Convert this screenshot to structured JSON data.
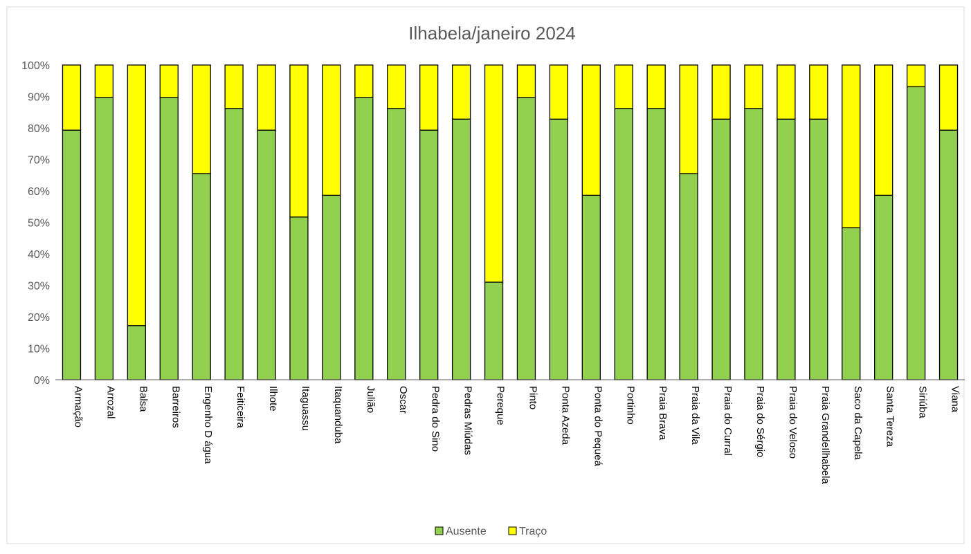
{
  "chart_data": {
    "type": "bar",
    "stacked": true,
    "title": "Ilhabela/janeiro 2024",
    "xlabel": "",
    "ylabel": "",
    "ylim": [
      0,
      100
    ],
    "yticks": [
      "0%",
      "10%",
      "20%",
      "30%",
      "40%",
      "50%",
      "60%",
      "70%",
      "80%",
      "90%",
      "100%"
    ],
    "grid": false,
    "legend_position": "bottom",
    "categories": [
      "Armação",
      "Arrozal",
      "Balsa",
      "Barreiros",
      "Engenho D água",
      "Feiticeira",
      "Ilhote",
      "Itaguassu",
      "Itaquanduba",
      "Julião",
      "Oscar",
      "Pedra do Sino",
      "Pedras Miúdas",
      "Pereque",
      "Pinto",
      "Ponta Azeda",
      "Ponta do Pequeá",
      "Portinho",
      "Praia Brava",
      "Praia da Vila",
      "Praia do Curral",
      "Praia do Sérgio",
      "Praia do Veloso",
      "Praia GrandeIlhabela",
      "Saco da Capela",
      "Santa Tereza",
      "Siriúba",
      "Viana"
    ],
    "series": [
      {
        "name": "Ausente",
        "color": "#92D050",
        "values": [
          79.3,
          89.7,
          17.2,
          89.7,
          65.5,
          86.2,
          79.3,
          51.7,
          58.6,
          89.7,
          86.2,
          79.3,
          82.8,
          31.0,
          89.7,
          82.8,
          58.6,
          86.2,
          86.2,
          65.5,
          82.8,
          86.2,
          82.8,
          82.8,
          48.3,
          58.6,
          93.1,
          79.3
        ]
      },
      {
        "name": "Traço",
        "color": "#FFFF00",
        "values": [
          20.7,
          10.3,
          82.8,
          10.3,
          34.5,
          13.8,
          20.7,
          48.3,
          41.4,
          10.3,
          13.8,
          20.7,
          17.2,
          69.0,
          10.3,
          17.2,
          41.4,
          13.8,
          13.8,
          34.5,
          17.2,
          13.8,
          17.2,
          17.2,
          51.7,
          41.4,
          6.9,
          20.7
        ]
      }
    ]
  }
}
